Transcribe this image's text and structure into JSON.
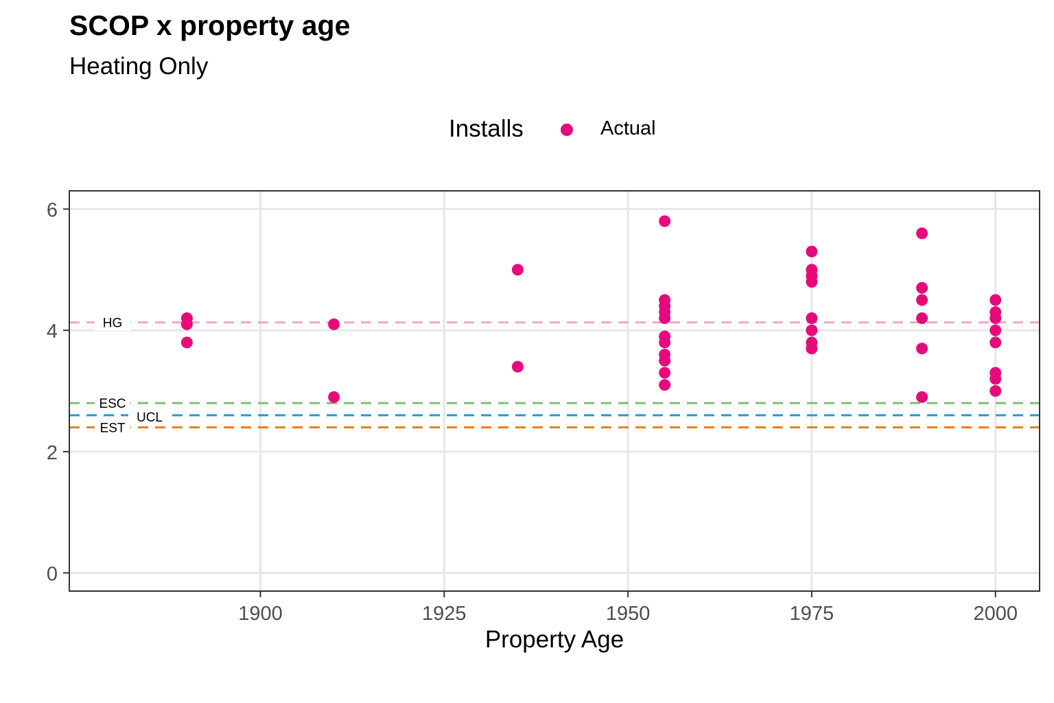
{
  "title": "SCOP x property age",
  "subtitle": "Heating Only",
  "legend": {
    "title": "Installs",
    "items": [
      {
        "label": "Actual",
        "color": "#E7087B"
      }
    ]
  },
  "chart_data": {
    "type": "scatter",
    "title": "SCOP x property age",
    "subtitle": "Heating Only",
    "xlabel": "Property Age",
    "ylabel": "",
    "xlim": [
      1874,
      2006
    ],
    "ylim": [
      -0.3,
      6.3
    ],
    "x_ticks": [
      1900,
      1925,
      1950,
      1975,
      2000
    ],
    "y_ticks": [
      0,
      2,
      4,
      6
    ],
    "grid": true,
    "legend_position": "top",
    "series": [
      {
        "name": "Actual",
        "color": "#E7087B",
        "points": [
          [
            1890,
            4.2
          ],
          [
            1890,
            4.1
          ],
          [
            1890,
            3.8
          ],
          [
            1910,
            4.1
          ],
          [
            1910,
            2.9
          ],
          [
            1935,
            5.0
          ],
          [
            1935,
            3.4
          ],
          [
            1955,
            5.8
          ],
          [
            1955,
            4.5
          ],
          [
            1955,
            4.4
          ],
          [
            1955,
            4.3
          ],
          [
            1955,
            4.2
          ],
          [
            1955,
            3.9
          ],
          [
            1955,
            3.8
          ],
          [
            1955,
            3.6
          ],
          [
            1955,
            3.5
          ],
          [
            1955,
            3.3
          ],
          [
            1955,
            3.1
          ],
          [
            1975,
            5.3
          ],
          [
            1975,
            5.0
          ],
          [
            1975,
            4.9
          ],
          [
            1975,
            4.8
          ],
          [
            1975,
            4.2
          ],
          [
            1975,
            4.0
          ],
          [
            1975,
            3.8
          ],
          [
            1975,
            3.7
          ],
          [
            1990,
            5.6
          ],
          [
            1990,
            4.7
          ],
          [
            1990,
            4.5
          ],
          [
            1990,
            4.2
          ],
          [
            1990,
            3.7
          ],
          [
            1990,
            2.9
          ],
          [
            2000,
            4.5
          ],
          [
            2000,
            4.3
          ],
          [
            2000,
            4.2
          ],
          [
            2000,
            4.0
          ],
          [
            2000,
            3.8
          ],
          [
            2000,
            3.3
          ],
          [
            2000,
            3.2
          ],
          [
            2000,
            3.0
          ]
        ]
      }
    ],
    "reference_lines": [
      {
        "label": "HG",
        "y": 4.13,
        "color": "#F4A6C0"
      },
      {
        "label": "ESC",
        "y": 2.8,
        "color": "#7BBF72"
      },
      {
        "label": "UCL",
        "y": 2.6,
        "color": "#1E9BE0"
      },
      {
        "label": "EST",
        "y": 2.4,
        "color": "#EE7D17"
      }
    ]
  }
}
